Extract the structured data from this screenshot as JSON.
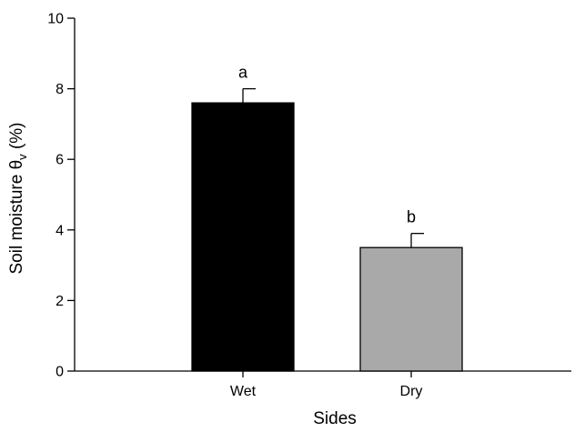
{
  "chart_data": {
    "type": "bar",
    "categories": [
      "Wet",
      "Dry"
    ],
    "values": [
      7.6,
      3.5
    ],
    "errors": [
      0.4,
      0.4
    ],
    "significance_letters": [
      "a",
      "b"
    ],
    "bar_colors": [
      "#000000",
      "#a9a9a9"
    ],
    "xlabel": "Sides",
    "ylabel": {
      "prefix": "Soil moisture ",
      "symbol": "θ",
      "subscript": "v",
      "suffix": " (%)"
    },
    "ylim": [
      0,
      10
    ],
    "yticks": [
      "0",
      "2",
      "4",
      "6",
      "8",
      "10"
    ],
    "grid": false,
    "legend": "none"
  }
}
